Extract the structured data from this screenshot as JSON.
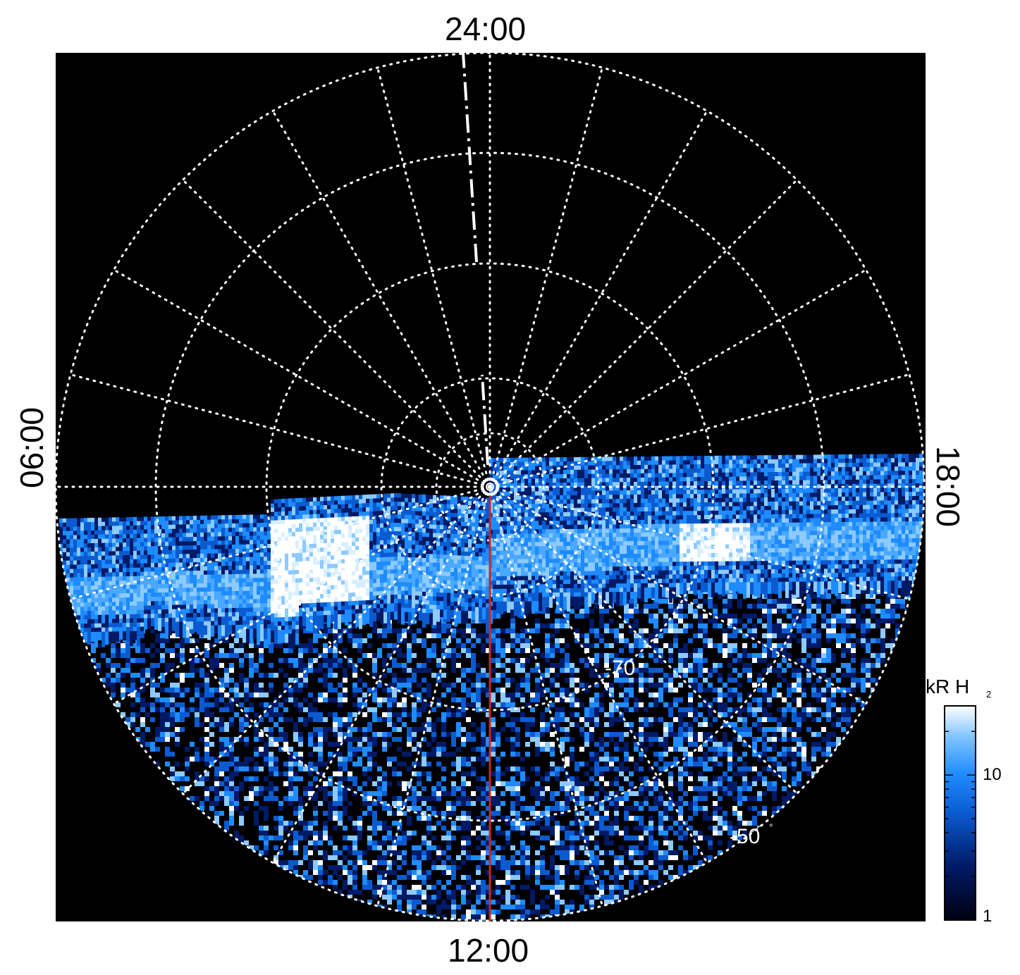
{
  "local_time_labels": {
    "top": "24:00",
    "bottom": "12:00",
    "left": "06:00",
    "right": "18:00"
  },
  "latitude_labels": [
    {
      "value": "-70",
      "unit": "°"
    },
    {
      "value": "-50",
      "unit": "°"
    }
  ],
  "colorbar": {
    "title": "kR H",
    "title_subscript": "2",
    "ticks": [
      "1",
      "10"
    ],
    "scale": "log",
    "colors": [
      "#000010",
      "#001a66",
      "#0b5bd0",
      "#1e8cff",
      "#7cc2ff",
      "#ffffff"
    ]
  },
  "colors": {
    "background": "#000000",
    "grid": "#ffffff",
    "noon_line": "#c8281e"
  }
}
